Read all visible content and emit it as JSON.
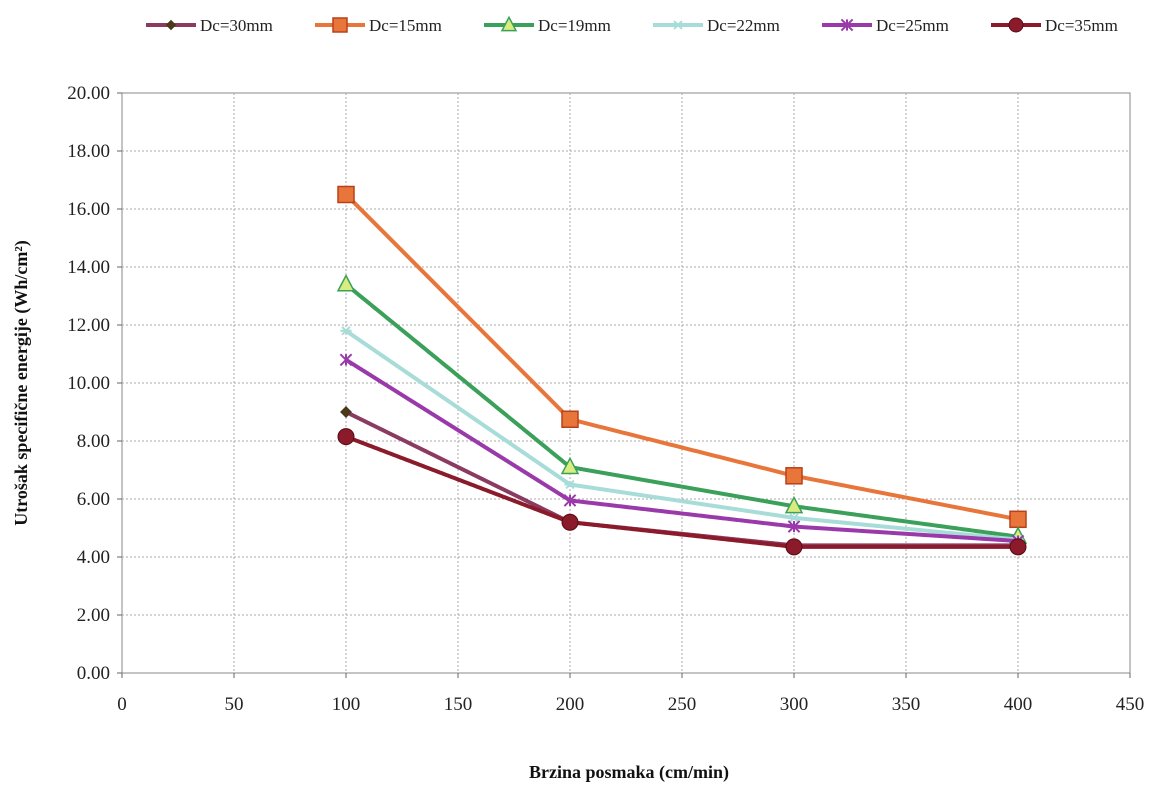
{
  "chart_data": {
    "type": "line",
    "title": "",
    "xlabel": "Brzina posmaka (cm/min)",
    "ylabel": "Utrošak specifične energije (Wh/cm²)",
    "xlim": [
      0,
      450
    ],
    "ylim": [
      0,
      20
    ],
    "x_ticks": [
      0,
      50,
      100,
      150,
      200,
      250,
      300,
      350,
      400,
      450
    ],
    "x_tick_labels": [
      "0",
      "50",
      "100",
      "150",
      "200",
      "250",
      "300",
      "350",
      "400",
      "450"
    ],
    "y_ticks": [
      0,
      2,
      4,
      6,
      8,
      10,
      12,
      14,
      16,
      18,
      20
    ],
    "y_tick_labels": [
      "0.00",
      "2.00",
      "4.00",
      "6.00",
      "8.00",
      "10.00",
      "12.00",
      "14.00",
      "16.00",
      "18.00",
      "20.00"
    ],
    "grid": true,
    "legend_position": "top",
    "x": [
      100,
      200,
      300,
      400
    ],
    "series": [
      {
        "name": "Dc=30mm",
        "values": [
          9.0,
          5.2,
          4.4,
          4.4
        ],
        "color": "#8b3a62",
        "marker": "diamond"
      },
      {
        "name": "Dc=15mm",
        "values": [
          16.5,
          8.75,
          6.8,
          5.3
        ],
        "color": "#e8753a",
        "marker": "square"
      },
      {
        "name": "Dc=19mm",
        "values": [
          13.4,
          7.1,
          5.75,
          4.7
        ],
        "color": "#3aa05a",
        "marker": "triangle"
      },
      {
        "name": "Dc=22mm",
        "values": [
          11.8,
          6.5,
          5.35,
          4.6
        ],
        "color": "#a8dcd8",
        "marker": "asterisk"
      },
      {
        "name": "Dc=25mm",
        "values": [
          10.8,
          5.95,
          5.05,
          4.55
        ],
        "color": "#9a3aaa",
        "marker": "star"
      },
      {
        "name": "Dc=35mm",
        "values": [
          8.15,
          5.2,
          4.35,
          4.35
        ],
        "color": "#8b1a2a",
        "marker": "circle"
      }
    ]
  }
}
